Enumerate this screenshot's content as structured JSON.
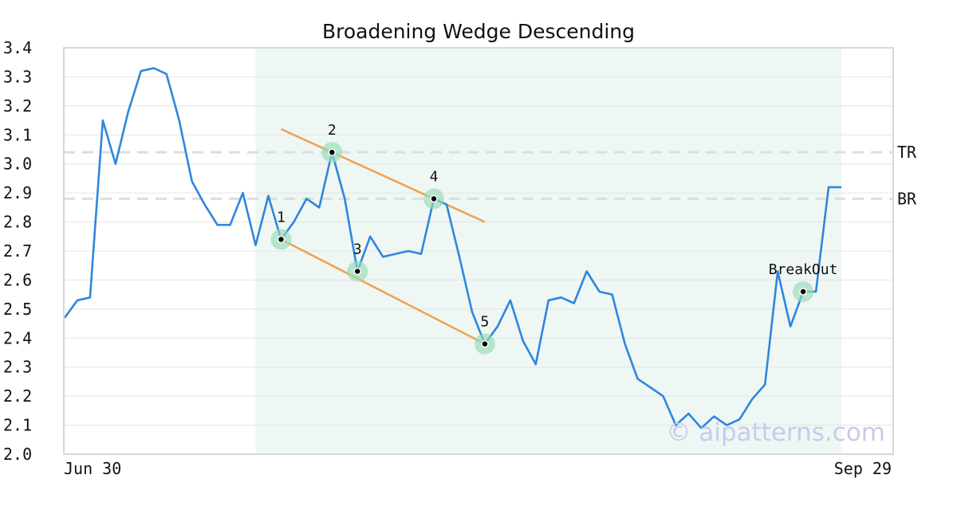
{
  "chart_data": {
    "type": "line",
    "title": "Broadening Wedge Descending",
    "xlabel": "",
    "ylabel": "",
    "ylim": [
      2.0,
      3.4
    ],
    "y_ticks": [
      "2.0",
      "2.1",
      "2.2",
      "2.3",
      "2.4",
      "2.5",
      "2.6",
      "2.7",
      "2.8",
      "2.9",
      "3.0",
      "3.1",
      "3.2",
      "3.3",
      "3.4"
    ],
    "x_tick_labels": [
      "Jun 30",
      "Sep 29"
    ],
    "grid": "horizontal",
    "series": [
      {
        "color": "#2e86de",
        "values": [
          2.47,
          2.53,
          2.54,
          3.15,
          3.0,
          3.18,
          3.32,
          3.33,
          3.31,
          3.15,
          2.94,
          2.86,
          2.79,
          2.79,
          2.9,
          2.72,
          2.89,
          2.74,
          2.8,
          2.88,
          2.85,
          3.04,
          2.88,
          2.63,
          2.75,
          2.68,
          2.69,
          2.7,
          2.69,
          2.88,
          2.86,
          2.68,
          2.49,
          2.38,
          2.44,
          2.53,
          2.39,
          2.31,
          2.53,
          2.54,
          2.52,
          2.63,
          2.56,
          2.55,
          2.38,
          2.26,
          2.23,
          2.2,
          2.1,
          2.14,
          2.09,
          2.13,
          2.1,
          2.12,
          2.19,
          2.24,
          2.63,
          2.44,
          2.56,
          2.56,
          2.92,
          2.92
        ]
      }
    ],
    "pattern_region": {
      "start_index": 15,
      "end_index": 61,
      "color": "#eef7f3"
    },
    "pattern_points": [
      {
        "label": "1",
        "index": 17,
        "value": 2.74
      },
      {
        "label": "2",
        "index": 21,
        "value": 3.04
      },
      {
        "label": "3",
        "index": 23,
        "value": 2.63
      },
      {
        "label": "4",
        "index": 29,
        "value": 2.88
      },
      {
        "label": "5",
        "index": 33,
        "value": 2.38
      },
      {
        "label": "BreakOut",
        "index": 58,
        "value": 2.56
      }
    ],
    "trend_lines": [
      {
        "name": "upper",
        "from": {
          "index": 17,
          "value": 3.12
        },
        "to": {
          "index": 33,
          "value": 2.8
        },
        "color": "#f4a04a"
      },
      {
        "name": "lower",
        "from": {
          "index": 17,
          "value": 2.74
        },
        "to": {
          "index": 33,
          "value": 2.38
        },
        "color": "#f4a04a"
      }
    ],
    "reference_lines": [
      {
        "label": "TR",
        "value": 3.04
      },
      {
        "label": "BR",
        "value": 2.88
      }
    ],
    "watermark": "© aipatterns.com"
  }
}
